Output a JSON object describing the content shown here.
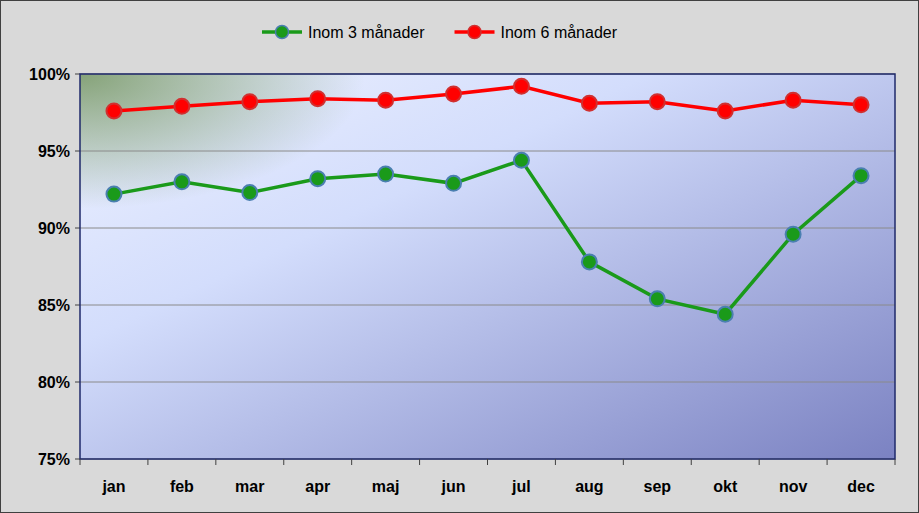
{
  "chart_data": {
    "type": "line",
    "categories": [
      "jan",
      "feb",
      "mar",
      "apr",
      "maj",
      "jun",
      "jul",
      "aug",
      "sep",
      "okt",
      "nov",
      "dec"
    ],
    "series": [
      {
        "name": "Inom 3 månader",
        "color": "#1a9a1a",
        "marker": "circle",
        "values": [
          92.2,
          93.0,
          92.3,
          93.2,
          93.5,
          92.9,
          94.4,
          87.8,
          85.4,
          84.4,
          89.6,
          93.4
        ]
      },
      {
        "name": "Inom 6 månader",
        "color": "#ff0000",
        "marker": "circle",
        "values": [
          97.6,
          97.9,
          98.2,
          98.4,
          98.3,
          98.7,
          99.2,
          98.1,
          98.2,
          97.6,
          98.3,
          98.0
        ]
      }
    ],
    "ylim": [
      75,
      100
    ],
    "yticks": [
      {
        "value": 75,
        "label": "75%"
      },
      {
        "value": 80,
        "label": "80%"
      },
      {
        "value": 85,
        "label": "85%"
      },
      {
        "value": 90,
        "label": "90%"
      },
      {
        "value": 95,
        "label": "95%"
      },
      {
        "value": 100,
        "label": "100%"
      }
    ],
    "grid": true,
    "legend": "top"
  }
}
